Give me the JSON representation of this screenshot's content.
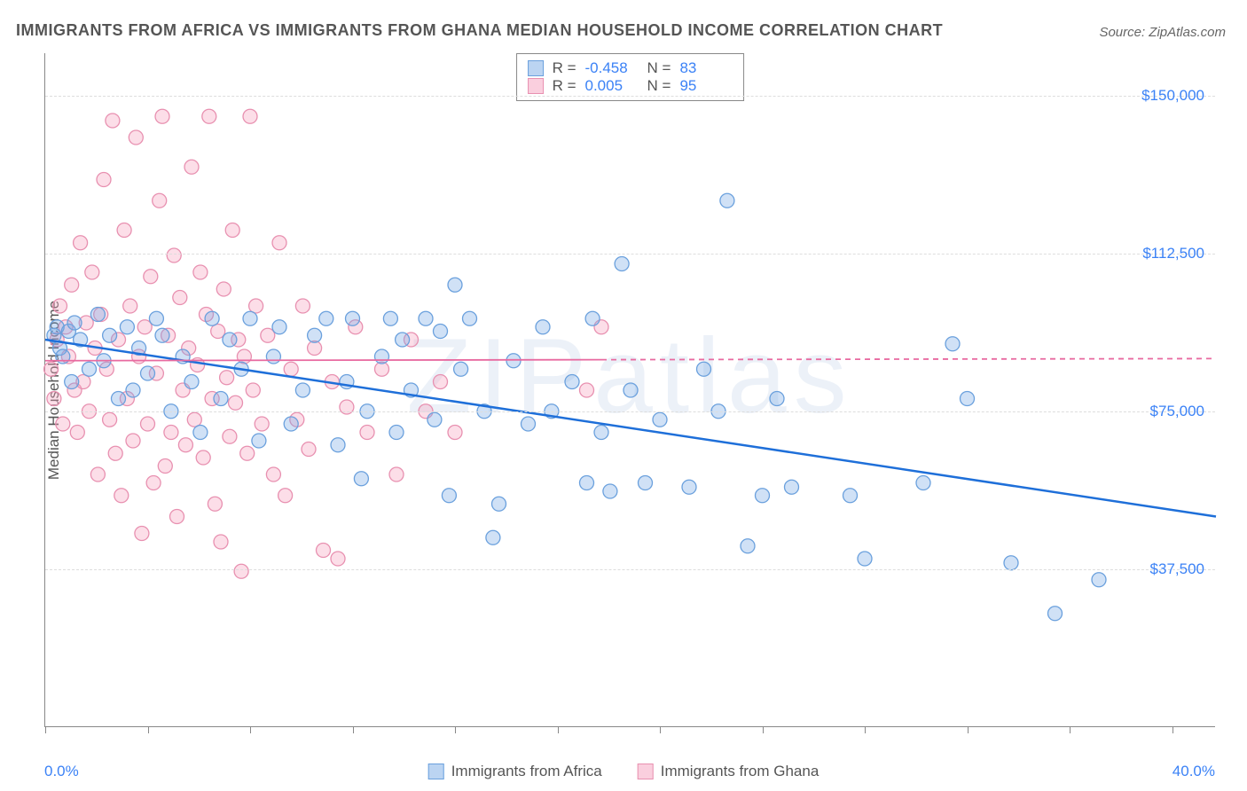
{
  "title": "IMMIGRANTS FROM AFRICA VS IMMIGRANTS FROM GHANA MEDIAN HOUSEHOLD INCOME CORRELATION CHART",
  "source": "Source: ZipAtlas.com",
  "watermark": "ZIPatlas",
  "yaxis_title": "Median Household Income",
  "chart": {
    "type": "scatter",
    "xlim": [
      0,
      40
    ],
    "ylim": [
      0,
      160000
    ],
    "x_tick_positions": [
      0,
      3.5,
      7,
      10.5,
      14,
      17.5,
      21,
      24.5,
      28,
      31.5,
      35,
      38.5
    ],
    "x_tick_labels_shown": {
      "0": "0.0%",
      "40": "40.0%"
    },
    "y_gridlines": [
      37500,
      75000,
      112500,
      150000
    ],
    "y_tick_labels": [
      "$37,500",
      "$75,000",
      "$112,500",
      "$150,000"
    ],
    "background_color": "#ffffff",
    "grid_color": "#dddddd",
    "axis_color": "#888888",
    "marker_radius": 8,
    "marker_stroke_width": 1.3,
    "series": [
      {
        "name": "Immigrants from Africa",
        "fill_color": "rgba(120,170,230,0.35)",
        "stroke_color": "#6aa0dd",
        "trend_color": "#1e6fd9",
        "trend_width": 2.5,
        "trend_dash_after_x": null,
        "R": "-0.458",
        "N": "83",
        "trend": {
          "x1": 0,
          "y1": 92000,
          "x2": 40,
          "y2": 50000
        },
        "points": [
          [
            0.3,
            93000
          ],
          [
            0.4,
            95000
          ],
          [
            0.5,
            90000
          ],
          [
            0.6,
            88000
          ],
          [
            0.8,
            94000
          ],
          [
            0.9,
            82000
          ],
          [
            1.0,
            96000
          ],
          [
            1.2,
            92000
          ],
          [
            1.5,
            85000
          ],
          [
            1.8,
            98000
          ],
          [
            2.0,
            87000
          ],
          [
            2.2,
            93000
          ],
          [
            2.5,
            78000
          ],
          [
            2.8,
            95000
          ],
          [
            3.0,
            80000
          ],
          [
            3.2,
            90000
          ],
          [
            3.5,
            84000
          ],
          [
            3.8,
            97000
          ],
          [
            4.0,
            93000
          ],
          [
            4.3,
            75000
          ],
          [
            4.7,
            88000
          ],
          [
            5.0,
            82000
          ],
          [
            5.3,
            70000
          ],
          [
            5.7,
            97000
          ],
          [
            6.0,
            78000
          ],
          [
            6.3,
            92000
          ],
          [
            6.7,
            85000
          ],
          [
            7.0,
            97000
          ],
          [
            7.3,
            68000
          ],
          [
            7.8,
            88000
          ],
          [
            8.0,
            95000
          ],
          [
            8.4,
            72000
          ],
          [
            8.8,
            80000
          ],
          [
            9.2,
            93000
          ],
          [
            9.6,
            97000
          ],
          [
            10.0,
            67000
          ],
          [
            10.3,
            82000
          ],
          [
            10.5,
            97000
          ],
          [
            10.8,
            59000
          ],
          [
            11.0,
            75000
          ],
          [
            11.5,
            88000
          ],
          [
            11.8,
            97000
          ],
          [
            12.0,
            70000
          ],
          [
            12.2,
            92000
          ],
          [
            12.5,
            80000
          ],
          [
            13.0,
            97000
          ],
          [
            13.3,
            73000
          ],
          [
            13.5,
            94000
          ],
          [
            13.8,
            55000
          ],
          [
            14.0,
            105000
          ],
          [
            14.2,
            85000
          ],
          [
            14.5,
            97000
          ],
          [
            15.0,
            75000
          ],
          [
            15.3,
            45000
          ],
          [
            15.5,
            53000
          ],
          [
            16.0,
            87000
          ],
          [
            16.5,
            72000
          ],
          [
            17.0,
            95000
          ],
          [
            17.3,
            75000
          ],
          [
            18.0,
            82000
          ],
          [
            18.5,
            58000
          ],
          [
            18.7,
            97000
          ],
          [
            19.0,
            70000
          ],
          [
            19.3,
            56000
          ],
          [
            19.7,
            110000
          ],
          [
            20.0,
            80000
          ],
          [
            20.5,
            58000
          ],
          [
            21.0,
            73000
          ],
          [
            22.0,
            57000
          ],
          [
            22.5,
            85000
          ],
          [
            23.0,
            75000
          ],
          [
            23.3,
            125000
          ],
          [
            24.0,
            43000
          ],
          [
            24.5,
            55000
          ],
          [
            25.0,
            78000
          ],
          [
            25.5,
            57000
          ],
          [
            27.5,
            55000
          ],
          [
            28.0,
            40000
          ],
          [
            30.0,
            58000
          ],
          [
            31.0,
            91000
          ],
          [
            31.5,
            78000
          ],
          [
            33.0,
            39000
          ],
          [
            34.5,
            27000
          ],
          [
            36.0,
            35000
          ]
        ]
      },
      {
        "name": "Immigrants from Ghana",
        "fill_color": "rgba(245,160,190,0.35)",
        "stroke_color": "#e890b0",
        "trend_color": "#e86aa0",
        "trend_width": 1.8,
        "trend_dash_after_x": 19,
        "R": "0.005",
        "N": "95",
        "trend": {
          "x1": 0,
          "y1": 87000,
          "x2": 40,
          "y2": 87500
        },
        "points": [
          [
            0.2,
            85000
          ],
          [
            0.3,
            78000
          ],
          [
            0.4,
            92000
          ],
          [
            0.5,
            100000
          ],
          [
            0.6,
            72000
          ],
          [
            0.7,
            95000
          ],
          [
            0.8,
            88000
          ],
          [
            0.9,
            105000
          ],
          [
            1.0,
            80000
          ],
          [
            1.1,
            70000
          ],
          [
            1.2,
            115000
          ],
          [
            1.3,
            82000
          ],
          [
            1.4,
            96000
          ],
          [
            1.5,
            75000
          ],
          [
            1.6,
            108000
          ],
          [
            1.7,
            90000
          ],
          [
            1.8,
            60000
          ],
          [
            1.9,
            98000
          ],
          [
            2.0,
            130000
          ],
          [
            2.1,
            85000
          ],
          [
            2.2,
            73000
          ],
          [
            2.3,
            144000
          ],
          [
            2.4,
            65000
          ],
          [
            2.5,
            92000
          ],
          [
            2.6,
            55000
          ],
          [
            2.7,
            118000
          ],
          [
            2.8,
            78000
          ],
          [
            2.9,
            100000
          ],
          [
            3.0,
            68000
          ],
          [
            3.1,
            140000
          ],
          [
            3.2,
            88000
          ],
          [
            3.3,
            46000
          ],
          [
            3.4,
            95000
          ],
          [
            3.5,
            72000
          ],
          [
            3.6,
            107000
          ],
          [
            3.7,
            58000
          ],
          [
            3.8,
            84000
          ],
          [
            3.9,
            125000
          ],
          [
            4.0,
            145000
          ],
          [
            4.1,
            62000
          ],
          [
            4.2,
            93000
          ],
          [
            4.3,
            70000
          ],
          [
            4.4,
            112000
          ],
          [
            4.5,
            50000
          ],
          [
            4.6,
            102000
          ],
          [
            4.7,
            80000
          ],
          [
            4.8,
            67000
          ],
          [
            4.9,
            90000
          ],
          [
            5.0,
            133000
          ],
          [
            5.1,
            73000
          ],
          [
            5.2,
            86000
          ],
          [
            5.3,
            108000
          ],
          [
            5.4,
            64000
          ],
          [
            5.5,
            98000
          ],
          [
            5.6,
            145000
          ],
          [
            5.7,
            78000
          ],
          [
            5.8,
            53000
          ],
          [
            5.9,
            94000
          ],
          [
            6.0,
            44000
          ],
          [
            6.1,
            104000
          ],
          [
            6.2,
            83000
          ],
          [
            6.3,
            69000
          ],
          [
            6.4,
            118000
          ],
          [
            6.5,
            77000
          ],
          [
            6.6,
            92000
          ],
          [
            6.7,
            37000
          ],
          [
            6.8,
            88000
          ],
          [
            6.9,
            65000
          ],
          [
            7.0,
            145000
          ],
          [
            7.1,
            80000
          ],
          [
            7.2,
            100000
          ],
          [
            7.4,
            72000
          ],
          [
            7.6,
            93000
          ],
          [
            7.8,
            60000
          ],
          [
            8.0,
            115000
          ],
          [
            8.2,
            55000
          ],
          [
            8.4,
            85000
          ],
          [
            8.6,
            73000
          ],
          [
            8.8,
            100000
          ],
          [
            9.0,
            66000
          ],
          [
            9.2,
            90000
          ],
          [
            9.5,
            42000
          ],
          [
            9.8,
            82000
          ],
          [
            10.0,
            40000
          ],
          [
            10.3,
            76000
          ],
          [
            10.6,
            95000
          ],
          [
            11.0,
            70000
          ],
          [
            11.5,
            85000
          ],
          [
            12.0,
            60000
          ],
          [
            12.5,
            92000
          ],
          [
            13.0,
            75000
          ],
          [
            13.5,
            82000
          ],
          [
            14.0,
            70000
          ],
          [
            18.5,
            80000
          ],
          [
            19.0,
            95000
          ]
        ]
      }
    ]
  },
  "legend_bottom": [
    {
      "label": "Immigrants from Africa",
      "fill": "rgba(120,170,230,0.5)",
      "border": "#6aa0dd"
    },
    {
      "label": "Immigrants from Ghana",
      "fill": "rgba(245,160,190,0.5)",
      "border": "#e890b0"
    }
  ]
}
